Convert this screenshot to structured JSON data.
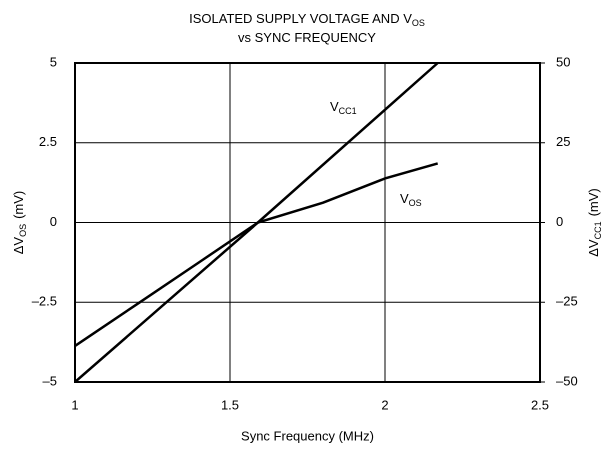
{
  "chart_data": {
    "type": "line",
    "title": [
      "ISOLATED SUPPLY VOLTAGE AND V",
      "OS",
      "vs SYNC FREQUENCY"
    ],
    "x_label": "Sync Frequency (MHz)",
    "y_label": [
      "ΔV",
      "OS",
      "(mV)"
    ],
    "y2_label": [
      "ΔV",
      "CC1",
      "(mV)"
    ],
    "xlim": [
      1,
      2.5
    ],
    "xticks": [
      1,
      1.5,
      2,
      2.5
    ],
    "ylim": [
      -5,
      5
    ],
    "yticks": [
      {
        "value": -5,
        "label": "–5"
      },
      {
        "value": -2.5,
        "label": "–2.5"
      },
      0,
      2.5,
      5
    ],
    "y2lim": [
      -50,
      50
    ],
    "y2ticks": [
      {
        "value": -50,
        "label": "–50"
      },
      {
        "value": -25,
        "label": "–25"
      },
      0,
      25,
      50
    ],
    "grid": true,
    "series": [
      {
        "name": "VCC1",
        "color": "#000000",
        "axis": "y2",
        "x": [
          1,
          1.59,
          2.17
        ],
        "values": [
          -50,
          0,
          50
        ]
      },
      {
        "name": "VOS",
        "color": "#000000",
        "x": [
          1,
          1.2,
          1.4,
          1.59,
          1.8,
          2.0,
          2.17
        ],
        "values": [
          -3.87,
          -2.56,
          -1.25,
          0,
          0.62,
          1.38,
          1.85
        ]
      }
    ]
  }
}
